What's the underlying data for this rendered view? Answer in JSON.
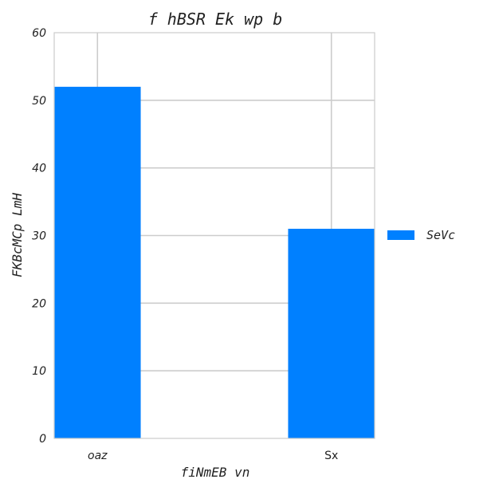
{
  "chart_data": {
    "type": "bar",
    "title": "f hBSR Ek wp b",
    "xlabel": "fiNmEB vn",
    "ylabel": "FKBcMCp LmH",
    "categories": [
      "oaz",
      "Sx"
    ],
    "series": [
      {
        "name": "SeVc",
        "values": [
          52,
          31
        ],
        "color": "#0080ff"
      }
    ],
    "ylim": [
      0,
      60
    ],
    "yticks": [
      0,
      10,
      20,
      30,
      40,
      50,
      60
    ],
    "grid": true,
    "legend_position": "right"
  }
}
